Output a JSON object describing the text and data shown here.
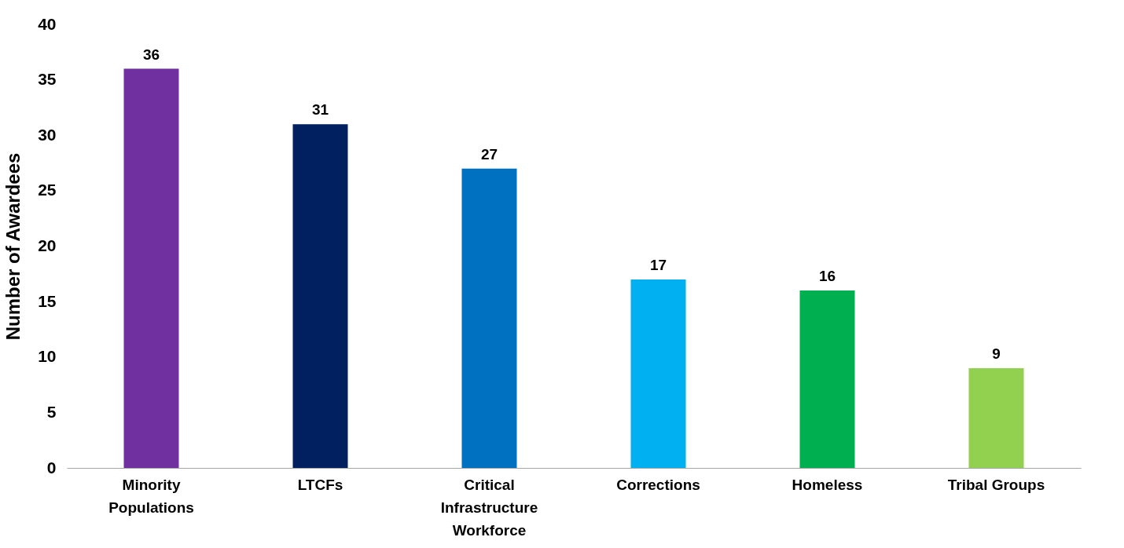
{
  "chart_data": {
    "type": "bar",
    "ylabel": "Number of Awardees",
    "categories": [
      "Minority Populations",
      "LTCFs",
      "Critical Infrastructure Workforce",
      "Corrections",
      "Homeless",
      "Tribal Groups"
    ],
    "values": [
      36,
      31,
      27,
      17,
      16,
      9
    ],
    "colors": [
      "#7030a0",
      "#002060",
      "#0070c0",
      "#00b0f0",
      "#00b050",
      "#92d050"
    ],
    "ylim": [
      0,
      40
    ],
    "yticks": [
      0,
      5,
      10,
      15,
      20,
      25,
      30,
      35,
      40
    ],
    "grid": false,
    "data_labels": true
  }
}
